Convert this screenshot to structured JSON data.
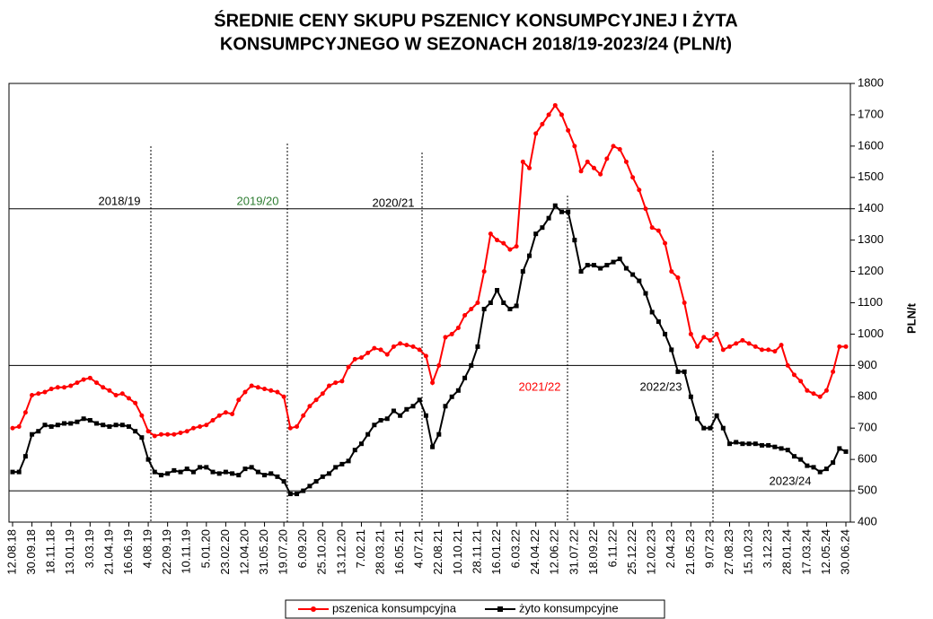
{
  "chart_data": {
    "type": "line",
    "title": [
      "ŚREDNIE CENY SKUPU PSZENICY KONSUMPCYJNEJ I ŻYTA",
      "KONSUMPCYJNEGO W SEZONACH 2018/19-2023/24 (PLN/t)"
    ],
    "y_axis_label": "PLN/t",
    "categories": [
      "12.08.18",
      null,
      null,
      "30.09.18",
      null,
      null,
      "18.11.18",
      null,
      null,
      "13.01.19",
      null,
      null,
      "3.03.19",
      null,
      null,
      "21.04.19",
      null,
      null,
      "16.06.19",
      null,
      null,
      "4.08.19",
      null,
      null,
      "22.09.19",
      null,
      null,
      "10.11.19",
      null,
      null,
      "5.01.20",
      null,
      null,
      "23.02.20",
      null,
      null,
      "12.04.20",
      null,
      null,
      "31.05.20",
      null,
      null,
      "19.07.20",
      null,
      null,
      "6.09.20",
      null,
      null,
      "25.10.20",
      null,
      null,
      "13.12.20",
      null,
      null,
      "7.02.21",
      null,
      null,
      "28.03.21",
      null,
      null,
      "16.05.21",
      null,
      null,
      "4.07.21",
      null,
      null,
      "22.08.21",
      null,
      null,
      "10.10.21",
      null,
      null,
      "28.11.21",
      null,
      null,
      "16.01.22",
      null,
      null,
      "6.03.22",
      null,
      null,
      "24.04.22",
      null,
      null,
      "12.06.22",
      null,
      null,
      "31.07.22",
      null,
      null,
      "18.09.22",
      null,
      null,
      "6.11.22",
      null,
      null,
      "25.12.22",
      null,
      null,
      "12.02.23",
      null,
      null,
      "2.04.23",
      null,
      null,
      "21.05.23",
      null,
      null,
      "9.07.23",
      null,
      null,
      "27.08.23",
      null,
      null,
      "15.10.23",
      null,
      null,
      "3.12.23",
      null,
      null,
      "28.01.24",
      null,
      null,
      "17.03.24",
      null,
      null,
      "12.05.24",
      null,
      null,
      "30.06.24"
    ],
    "series": [
      {
        "name": "pszenica konsumpcyjna",
        "color": "#ff0000",
        "marker": "circle",
        "values": [
          700,
          705,
          750,
          805,
          810,
          815,
          825,
          830,
          830,
          835,
          845,
          855,
          860,
          845,
          830,
          820,
          805,
          810,
          795,
          780,
          740,
          690,
          675,
          680,
          680,
          680,
          685,
          690,
          700,
          705,
          710,
          725,
          740,
          750,
          745,
          790,
          815,
          835,
          830,
          825,
          820,
          815,
          800,
          700,
          705,
          740,
          770,
          790,
          810,
          835,
          845,
          850,
          895,
          920,
          925,
          940,
          955,
          950,
          935,
          960,
          970,
          965,
          960,
          950,
          930,
          845,
          900,
          990,
          1000,
          1020,
          1060,
          1080,
          1100,
          1200,
          1320,
          1300,
          1290,
          1270,
          1280,
          1550,
          1530,
          1640,
          1670,
          1700,
          1730,
          1700,
          1650,
          1600,
          1520,
          1550,
          1530,
          1510,
          1560,
          1600,
          1590,
          1550,
          1500,
          1460,
          1400,
          1340,
          1330,
          1290,
          1200,
          1180,
          1100,
          1000,
          960,
          990,
          980,
          1000,
          950,
          960,
          970,
          980,
          970,
          960,
          950,
          950,
          945,
          965,
          900,
          870,
          850,
          820,
          810,
          800,
          820,
          880,
          960,
          960
        ]
      },
      {
        "name": "żyto konsumpcyjne",
        "color": "#000000",
        "marker": "square",
        "values": [
          560,
          560,
          610,
          680,
          690,
          710,
          705,
          710,
          715,
          715,
          720,
          730,
          725,
          715,
          710,
          705,
          710,
          710,
          705,
          690,
          670,
          600,
          560,
          550,
          555,
          565,
          560,
          570,
          560,
          575,
          575,
          560,
          555,
          560,
          555,
          550,
          570,
          575,
          560,
          550,
          555,
          545,
          530,
          490,
          490,
          500,
          515,
          530,
          545,
          555,
          575,
          585,
          595,
          630,
          650,
          680,
          710,
          725,
          730,
          755,
          740,
          760,
          770,
          790,
          740,
          640,
          680,
          770,
          800,
          820,
          860,
          900,
          960,
          1080,
          1100,
          1140,
          1100,
          1080,
          1090,
          1200,
          1250,
          1320,
          1340,
          1370,
          1410,
          1390,
          1390,
          1300,
          1200,
          1220,
          1220,
          1210,
          1220,
          1230,
          1240,
          1210,
          1190,
          1170,
          1130,
          1070,
          1040,
          1000,
          950,
          880,
          880,
          800,
          730,
          700,
          700,
          740,
          700,
          650,
          655,
          650,
          650,
          650,
          645,
          645,
          640,
          635,
          630,
          610,
          600,
          580,
          575,
          560,
          570,
          590,
          635,
          625
        ]
      }
    ],
    "annotations": [
      {
        "text": "2018/19",
        "color": "#000000"
      },
      {
        "text": "2019/20",
        "color": "#2e7d32"
      },
      {
        "text": "2020/21",
        "color": "#000000"
      },
      {
        "text": "2021/22",
        "color": "#ff0000"
      },
      {
        "text": "2022/23",
        "color": "#000000"
      },
      {
        "text": "2023/24",
        "color": "#000000"
      }
    ],
    "ylim": [
      400,
      1800
    ],
    "yticks": [
      400,
      500,
      600,
      700,
      800,
      900,
      1000,
      1100,
      1200,
      1300,
      1400,
      1500,
      1600,
      1700,
      1800
    ],
    "grid_values": [
      500,
      900,
      1400
    ],
    "y_axis_side": "right"
  }
}
